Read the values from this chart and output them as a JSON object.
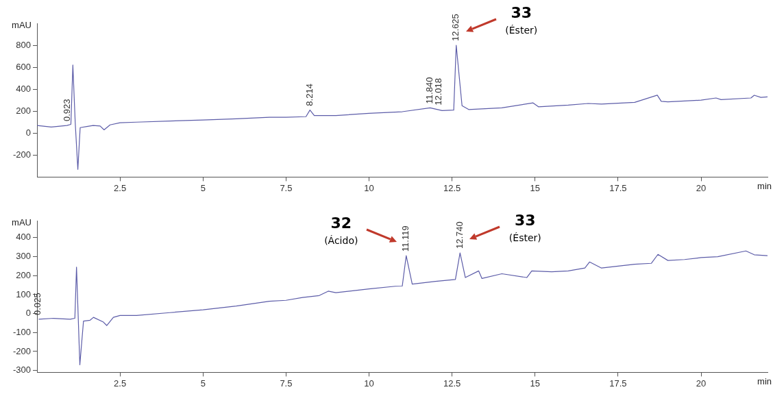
{
  "chart_data": [
    {
      "type": "line",
      "ylabel": "mAU",
      "xlabel": "min",
      "color": "#5c5ca8",
      "grid": false,
      "legend": false,
      "marker": "none",
      "x": [
        0,
        0.43,
        0.9,
        1.02,
        1.08,
        1.15,
        1.23,
        1.3,
        1.5,
        1.69,
        1.9,
        2.02,
        2.2,
        2.5,
        3,
        4,
        5,
        6,
        7,
        7.5,
        8.1,
        8.22,
        8.35,
        8.5,
        9,
        10,
        11,
        11.84,
        12.2,
        12.55,
        12.625,
        12.8,
        13,
        14,
        14.94,
        15.1,
        16,
        16.6,
        17,
        18,
        18.68,
        18.8,
        19,
        20,
        20.45,
        20.6,
        21.5,
        21.6,
        21.8,
        22
      ],
      "values": [
        70,
        55,
        70,
        80,
        620,
        100,
        -330,
        50,
        60,
        70,
        65,
        30,
        75,
        95,
        100,
        110,
        120,
        130,
        145,
        145,
        150,
        210,
        160,
        160,
        160,
        180,
        195,
        230,
        205,
        210,
        800,
        250,
        215,
        230,
        275,
        240,
        255,
        270,
        265,
        280,
        346,
        290,
        285,
        300,
        320,
        305,
        320,
        345,
        325,
        330
      ],
      "xlim": [
        0,
        22
      ],
      "xticks": [
        2.5,
        5,
        7.5,
        10,
        12.5,
        15,
        17.5,
        20
      ],
      "ylim": [
        -400,
        1000
      ],
      "yticks": [
        -200,
        0,
        200,
        400,
        600,
        800
      ],
      "annotations": [
        {
          "text": "0.923",
          "x": 0.923,
          "y": 70
        },
        {
          "text": "8.214",
          "x": 8.214,
          "y": 210
        },
        {
          "text": "11.840",
          "x": 11.84,
          "y": 230
        },
        {
          "text": "12.018",
          "x": 12.018,
          "y": 215
        },
        {
          "text": "12.625",
          "x": 12.625,
          "y": 800
        },
        "33\n(Éster)"
      ]
    },
    {
      "type": "line",
      "ylabel": "mAU",
      "xlabel": "min",
      "color": "#5c5ca8",
      "grid": false,
      "legend": false,
      "marker": "none",
      "x": [
        0.05,
        0.5,
        1,
        1.14,
        1.19,
        1.29,
        1.4,
        1.6,
        1.7,
        2,
        2.1,
        2.3,
        2.5,
        3,
        4,
        5,
        6,
        7,
        7.5,
        8,
        8.5,
        8.77,
        9,
        10,
        10.79,
        11,
        11.119,
        11.3,
        12,
        12.6,
        12.74,
        12.9,
        13.3,
        13.4,
        14,
        14.75,
        14.9,
        15.5,
        16,
        16.5,
        16.64,
        17,
        17.5,
        18,
        18.5,
        18.7,
        19,
        19.5,
        20,
        20.5,
        21.35,
        21.6,
        22
      ],
      "values": [
        -30,
        -25,
        -30,
        -25,
        245,
        -270,
        -40,
        -35,
        -20,
        -45,
        -63,
        -20,
        -10,
        -10,
        5,
        20,
        40,
        65,
        70,
        85,
        95,
        118,
        110,
        130,
        144,
        145,
        305,
        155,
        170,
        180,
        320,
        190,
        225,
        185,
        210,
        190,
        225,
        220,
        225,
        240,
        272,
        240,
        250,
        260,
        265,
        312,
        280,
        285,
        295,
        300,
        330,
        310,
        305
      ],
      "xlim": [
        0,
        22
      ],
      "xticks": [
        2.5,
        5,
        7.5,
        10,
        12.5,
        15,
        17.5,
        20
      ],
      "ylim": [
        -310,
        490
      ],
      "yticks": [
        -300,
        -200,
        -100,
        0,
        100,
        200,
        300,
        400
      ],
      "annotations": [
        {
          "text": "0.025",
          "x": 0.025,
          "y": -30
        },
        {
          "text": "11.119",
          "x": 11.119,
          "y": 305
        },
        {
          "text": "12.740",
          "x": 12.74,
          "y": 320
        },
        "32\n(Ácido)",
        "33\n(Éster)"
      ]
    }
  ]
}
